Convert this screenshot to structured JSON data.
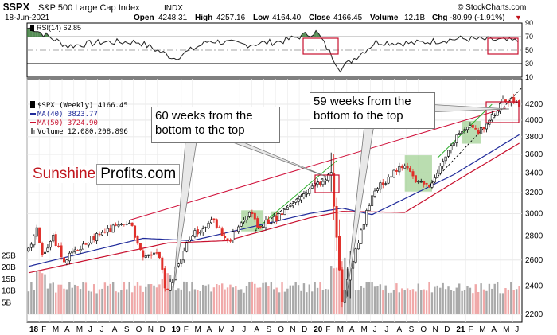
{
  "header": {
    "symbol": "$SPX",
    "name": "S&P 500 Large Cap Index",
    "exchange": "INDX",
    "date": "18-Jun-2021",
    "open_label": "Open",
    "open": "4248.31",
    "high_label": "High",
    "high": "4257.16",
    "low_label": "Low",
    "low": "4164.40",
    "close_label": "Close",
    "close": "4166.45",
    "volume_label": "Volume",
    "volume": "12.1B",
    "chg_label": "Chg",
    "chg": "-80.99 (-1.91%)",
    "chg_arrow": "▼",
    "copyright": "© StockCharts.com"
  },
  "brand": {
    "part1": "Sunshine",
    "part2": "Profits.com"
  },
  "annotations": {
    "left": "60 weeks from the\nbottom to the top",
    "right": "59 weeks from the\nbottom to the top"
  },
  "colors": {
    "up": "#000000",
    "down": "#e0302a",
    "ma40": "#1f2a9a",
    "ma50": "#c8102e",
    "rsi_fill": "#3a7a3a",
    "green_box": "#9ccf8e",
    "trend_red": "#d0103a",
    "trend_green": "#2fae2f",
    "vol_up": "#a9a9a9",
    "vol_down": "#f0a8a8"
  },
  "chart_data": [
    {
      "type": "line",
      "title": "RSI(14) 62.85",
      "legend": "RSI(14) 62.85",
      "ylim": [
        20,
        90
      ],
      "y_ticks": [
        10,
        30,
        50,
        70,
        90
      ],
      "reference_lines": [
        70,
        50,
        30
      ],
      "x": [
        "2018-01",
        "2018-04",
        "2018-07",
        "2018-10",
        "2019-01",
        "2019-04",
        "2019-07",
        "2019-10",
        "2020-01",
        "2020-03",
        "2020-06",
        "2020-09",
        "2021-01",
        "2021-04",
        "2021-06"
      ],
      "series": [
        {
          "name": "RSI(14)",
          "values": [
            82,
            56,
            62,
            62,
            38,
            64,
            58,
            63,
            77,
            22,
            62,
            60,
            67,
            65,
            63
          ]
        }
      ]
    },
    {
      "type": "candlestick",
      "title": "$SPX (Weekly) 4166.45",
      "y_scale": "log",
      "ylim": [
        2200,
        4400
      ],
      "y_ticks": [
        2200,
        2400,
        2600,
        2800,
        3000,
        3200,
        3400,
        3600,
        3800,
        4000,
        4200
      ],
      "x_ticks": [
        "18",
        "F",
        "M",
        "A",
        "M",
        "J",
        "J",
        "A",
        "S",
        "O",
        "N",
        "D",
        "19",
        "F",
        "M",
        "A",
        "M",
        "J",
        "J",
        "A",
        "S",
        "O",
        "N",
        "D",
        "20",
        "F",
        "M",
        "A",
        "M",
        "J",
        "J",
        "A",
        "S",
        "O",
        "N",
        "D",
        "21",
        "F",
        "M",
        "A",
        "M",
        "J"
      ],
      "legend": [
        {
          "name": "$SPX (Weekly) 4166.45"
        },
        {
          "name": "MA(40) 3823.77"
        },
        {
          "name": "MA(50) 3724.90"
        },
        {
          "name": "Volume 12,080,208,896"
        }
      ],
      "price_path": [
        [
          "2018-01-05",
          2700
        ],
        [
          "2018-01-26",
          2870
        ],
        [
          "2018-02-09",
          2620
        ],
        [
          "2018-03-09",
          2790
        ],
        [
          "2018-04-06",
          2600
        ],
        [
          "2018-06-15",
          2780
        ],
        [
          "2018-08-31",
          2900
        ],
        [
          "2018-09-21",
          2930
        ],
        [
          "2018-10-26",
          2650
        ],
        [
          "2018-12-07",
          2640
        ],
        [
          "2018-12-24",
          2350
        ],
        [
          "2019-02-22",
          2790
        ],
        [
          "2019-04-26",
          2940
        ],
        [
          "2019-05-31",
          2750
        ],
        [
          "2019-07-26",
          3020
        ],
        [
          "2019-08-16",
          2880
        ],
        [
          "2019-10-11",
          2970
        ],
        [
          "2019-12-27",
          3240
        ],
        [
          "2020-02-21",
          3380
        ],
        [
          "2020-03-20",
          2300
        ],
        [
          "2020-06-05",
          3190
        ],
        [
          "2020-08-28",
          3510
        ],
        [
          "2020-09-25",
          3290
        ],
        [
          "2020-10-30",
          3270
        ],
        [
          "2021-01-08",
          3820
        ],
        [
          "2021-02-12",
          3930
        ],
        [
          "2021-03-05",
          3840
        ],
        [
          "2021-05-07",
          4230
        ],
        [
          "2021-06-11",
          4250
        ],
        [
          "2021-06-18",
          4166.45
        ]
      ],
      "ma40_path": [
        [
          "2018-01-05",
          2550
        ],
        [
          "2018-10-26",
          2780
        ],
        [
          "2019-03-01",
          2760
        ],
        [
          "2019-12-27",
          3000
        ],
        [
          "2020-03-20",
          3050
        ],
        [
          "2020-06-05",
          2990
        ],
        [
          "2020-12-31",
          3380
        ],
        [
          "2021-06-18",
          3823.77
        ]
      ],
      "ma50_path": [
        [
          "2018-01-05",
          2500
        ],
        [
          "2018-12-28",
          2740
        ],
        [
          "2019-05-31",
          2760
        ],
        [
          "2019-12-27",
          2960
        ],
        [
          "2020-03-20",
          3020
        ],
        [
          "2020-08-28",
          3010
        ],
        [
          "2020-12-31",
          3300
        ],
        [
          "2021-06-18",
          3724.9
        ]
      ],
      "volume": {
        "y_ticks": [
          "25B",
          "20B",
          "15B",
          "10B",
          "5B"
        ],
        "last": 12080208896
      }
    }
  ]
}
